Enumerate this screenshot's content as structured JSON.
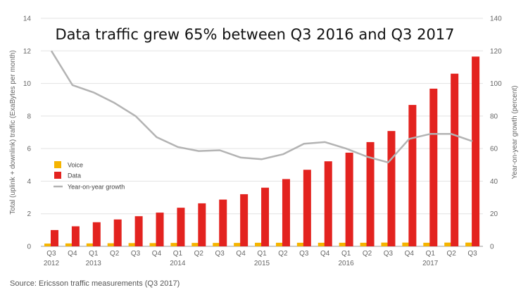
{
  "chart_data": {
    "type": "bar",
    "title": "Data traffic grew 65% between Q3 2016 and Q3 2017",
    "source": "Source: Ericsson traffic measurements (Q3 2017)",
    "ylabel": "Total (uplink + downlink) traffic (ExaBytes per month)",
    "y2label": "Year-on-year growth (percent)",
    "ylim": [
      0,
      14
    ],
    "y2lim": [
      0,
      140
    ],
    "yticks": [
      "0",
      "2",
      "4",
      "6",
      "8",
      "10",
      "12",
      "14"
    ],
    "y2ticks": [
      "0",
      "20",
      "40",
      "60",
      "80",
      "100",
      "120",
      "140"
    ],
    "grid": true,
    "legend_position": "left-middle",
    "categories": [
      [
        "Q3",
        "2012"
      ],
      [
        "Q4",
        ""
      ],
      [
        "Q1",
        "2013"
      ],
      [
        "Q2",
        ""
      ],
      [
        "Q3",
        ""
      ],
      [
        "Q4",
        ""
      ],
      [
        "Q1",
        "2014"
      ],
      [
        "Q2",
        ""
      ],
      [
        "Q3",
        ""
      ],
      [
        "Q4",
        ""
      ],
      [
        "Q1",
        "2015"
      ],
      [
        "Q2",
        ""
      ],
      [
        "Q3",
        ""
      ],
      [
        "Q4",
        ""
      ],
      [
        "Q1",
        "2016"
      ],
      [
        "Q2",
        ""
      ],
      [
        "Q3",
        ""
      ],
      [
        "Q4",
        ""
      ],
      [
        "Q1",
        "2017"
      ],
      [
        "Q2",
        ""
      ],
      [
        "Q3",
        ""
      ]
    ],
    "series": [
      {
        "name": "Voice",
        "type": "bar",
        "axis": "left",
        "color": "#f5b400",
        "values": [
          0.17,
          0.18,
          0.18,
          0.19,
          0.2,
          0.2,
          0.21,
          0.21,
          0.21,
          0.21,
          0.22,
          0.22,
          0.22,
          0.22,
          0.22,
          0.22,
          0.23,
          0.23,
          0.22,
          0.23,
          0.23
        ]
      },
      {
        "name": "Data",
        "type": "bar",
        "axis": "left",
        "color": "#e3231f",
        "values": [
          1.0,
          1.23,
          1.48,
          1.65,
          1.85,
          2.07,
          2.37,
          2.64,
          2.87,
          3.2,
          3.6,
          4.13,
          4.7,
          5.22,
          5.75,
          6.4,
          7.08,
          8.68,
          9.68,
          10.6,
          11.65
        ]
      },
      {
        "name": "Year-on-year growth",
        "type": "line",
        "axis": "right",
        "color": "#b3b3b3",
        "values": [
          120,
          99,
          94.5,
          88,
          80,
          67,
          61,
          58.5,
          59,
          54.5,
          53.5,
          56.5,
          63,
          64,
          60,
          55,
          51.5,
          66,
          69,
          69,
          64.5
        ]
      }
    ]
  }
}
